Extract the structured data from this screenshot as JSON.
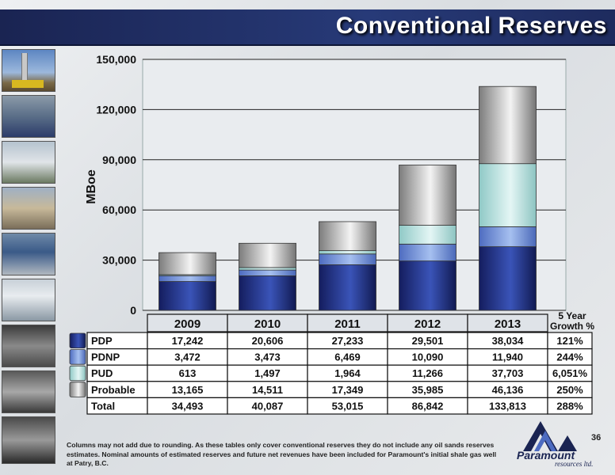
{
  "slide": {
    "title": "Conventional Reserves",
    "page_number": "36",
    "footnote": "Columns may not add due to rounding. As these tables only cover conventional reserves they do not include any oil sands reserves estimates. Nominal amounts of estimated reserves and future net revenues have been included for Paramount's initial shale gas well at Patry, B.C.",
    "logo_name": "Paramount",
    "logo_subtitle": "resources ltd.",
    "growth_header": "5 Year Growth %"
  },
  "colors": {
    "header": "#1e2b5e",
    "PDP": "#1e2a80",
    "PDNP": "#6f8fd8",
    "PUD": "#b9e2e0",
    "Probable": "#aeaeae"
  },
  "chart_data": {
    "type": "bar",
    "stacked": true,
    "title": "",
    "xlabel": "",
    "ylabel": "MBoe",
    "ylim": [
      0,
      150000
    ],
    "yticks": [
      "0",
      "30,000",
      "60,000",
      "90,000",
      "120,000",
      "150,000"
    ],
    "ytick_values": [
      0,
      30000,
      60000,
      90000,
      120000,
      150000
    ],
    "grid": true,
    "categories": [
      "2009",
      "2010",
      "2011",
      "2012",
      "2013"
    ],
    "series": [
      {
        "name": "PDP",
        "values": [
          17242,
          20606,
          27233,
          29501,
          38034
        ],
        "labels": [
          "17,242",
          "20,606",
          "27,233",
          "29,501",
          "38,034"
        ],
        "growth": "121%"
      },
      {
        "name": "PDNP",
        "values": [
          3472,
          3473,
          6469,
          10090,
          11940
        ],
        "labels": [
          "3,472",
          "3,473",
          "6,469",
          "10,090",
          "11,940"
        ],
        "growth": "244%"
      },
      {
        "name": "PUD",
        "values": [
          613,
          1497,
          1964,
          11266,
          37703
        ],
        "labels": [
          "613",
          "1,497",
          "1,964",
          "11,266",
          "37,703"
        ],
        "growth": "6,051%"
      },
      {
        "name": "Probable",
        "values": [
          13165,
          14511,
          17349,
          35985,
          46136
        ],
        "labels": [
          "13,165",
          "14,511",
          "17,349",
          "35,985",
          "46,136"
        ],
        "growth": "250%"
      }
    ],
    "total": {
      "name": "Total",
      "values": [
        34493,
        40087,
        53015,
        86842,
        133813
      ],
      "labels": [
        "34,493",
        "40,087",
        "53,015",
        "86,842",
        "133,813"
      ],
      "growth": "288%"
    }
  }
}
